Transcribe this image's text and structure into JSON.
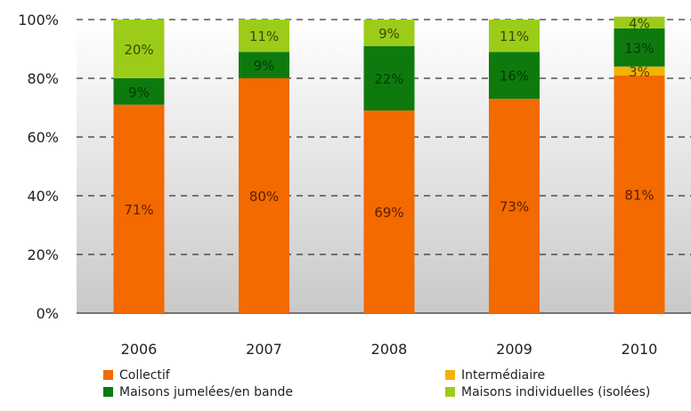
{
  "chart_data": {
    "type": "bar",
    "stacked": true,
    "percent": true,
    "categories": [
      "2006",
      "2007",
      "2008",
      "2009",
      "2010"
    ],
    "series": [
      {
        "name": "Collectif",
        "color": "#f26a00",
        "values": [
          71,
          80,
          69,
          73,
          81
        ],
        "labels": [
          "71%",
          "80%",
          "69%",
          "73%",
          "81%"
        ]
      },
      {
        "name": "Intermédiaire",
        "color": "#f2b400",
        "values": [
          0,
          0,
          0,
          0,
          3
        ],
        "labels": [
          "",
          "",
          "",
          "",
          "3%"
        ]
      },
      {
        "name": "Maisons jumelées/en bande",
        "color": "#0e7a0e",
        "values": [
          9,
          9,
          22,
          16,
          13
        ],
        "labels": [
          "9%",
          "9%",
          "22%",
          "16%",
          "13%"
        ]
      },
      {
        "name": "Maisons individuelles (isolées)",
        "color": "#9ccc1a",
        "values": [
          20,
          11,
          9,
          11,
          4
        ],
        "labels": [
          "20%",
          "11%",
          "9%",
          "11%",
          "4%"
        ]
      }
    ],
    "ylim": [
      0,
      100
    ],
    "yticks": [
      "0%",
      "20%",
      "40%",
      "60%",
      "80%",
      "100%"
    ],
    "grid": true,
    "legend": "bottom",
    "title": "",
    "xlabel": "",
    "ylabel": ""
  }
}
